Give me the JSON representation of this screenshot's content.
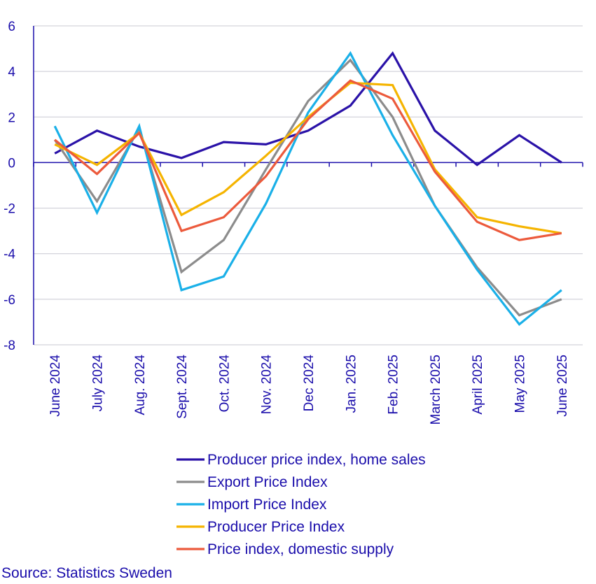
{
  "colors": {
    "text": "#1a0dab",
    "grid": "#c8c8d2",
    "axis": "#1a0dab"
  },
  "chart_data": {
    "type": "line",
    "title": "",
    "xlabel": "",
    "ylabel": "",
    "ylim": [
      -8,
      6
    ],
    "yticks": [
      6,
      4,
      2,
      0,
      -2,
      -4,
      -6,
      -8
    ],
    "grid": true,
    "legend_position": "bottom",
    "categories": [
      "June 2024",
      "July 2024",
      "Aug. 2024",
      "Sept. 2024",
      "Oct. 2024",
      "Nov. 2024",
      "Dec 2024",
      "Jan. 2025",
      "Feb. 2025",
      "March 2025",
      "April 2025",
      "May 2025",
      "June 2025"
    ],
    "series": [
      {
        "name": "Producer price index, home sales",
        "color": "#2a12a8",
        "values": [
          0.4,
          1.4,
          0.7,
          0.2,
          0.9,
          0.8,
          1.4,
          2.5,
          4.8,
          1.4,
          -0.1,
          1.2,
          0.0
        ]
      },
      {
        "name": "Export Price Index",
        "color": "#8c8c8c",
        "values": [
          1.0,
          -1.7,
          1.5,
          -4.8,
          -3.4,
          -0.3,
          2.7,
          4.5,
          2.0,
          -1.9,
          -4.6,
          -6.7,
          -6.0
        ]
      },
      {
        "name": "Import Price Index",
        "color": "#1ab0e8",
        "values": [
          1.6,
          -2.2,
          1.6,
          -5.6,
          -5.0,
          -1.8,
          2.2,
          4.8,
          1.2,
          -1.9,
          -4.7,
          -7.1,
          -5.6
        ]
      },
      {
        "name": "Producer Price Index",
        "color": "#f5b400",
        "values": [
          0.8,
          -0.1,
          1.3,
          -2.3,
          -1.3,
          0.3,
          2.0,
          3.5,
          3.4,
          -0.3,
          -2.4,
          -2.8,
          -3.1
        ]
      },
      {
        "name": "Price index, domestic supply",
        "color": "#ec5a3c",
        "values": [
          1.0,
          -0.5,
          1.3,
          -3.0,
          -2.4,
          -0.6,
          1.9,
          3.6,
          2.8,
          -0.4,
          -2.6,
          -3.4,
          -3.1
        ]
      }
    ]
  },
  "source": "Source: Statistics Sweden"
}
